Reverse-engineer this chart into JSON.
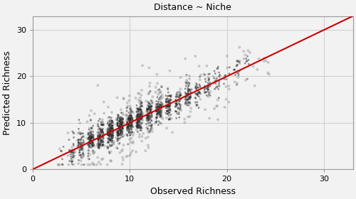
{
  "title": "Distance ~ Niche",
  "xlabel": "Observed Richness",
  "ylabel": "Predicted Richness",
  "xlim": [
    0,
    33
  ],
  "ylim": [
    0,
    33
  ],
  "xticks": [
    0,
    10,
    20,
    30
  ],
  "yticks": [
    0,
    10,
    20,
    30
  ],
  "one_to_one_color": "#cc0000",
  "scatter_color_dark": "#2a2a2a",
  "scatter_color_light": "#888888",
  "scatter_alpha_dark": 0.5,
  "scatter_alpha_light": 0.4,
  "scatter_size_dark": 4,
  "scatter_size_light": 8,
  "grid_color": "#d0d0d0",
  "bg_color": "#f2f2f2",
  "seed": 42,
  "n_points_core": 1200,
  "n_points_outer": 400
}
